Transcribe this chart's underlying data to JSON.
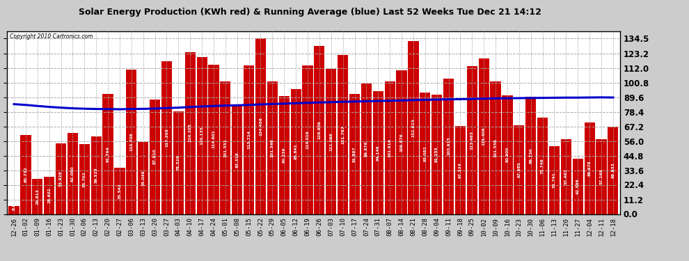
{
  "title": "Solar Energy Production (KWh red) & Running Average (blue) Last 52 Weeks Tue Dec 21 14:12",
  "copyright": "Copyright 2010 Cartronics.com",
  "bar_color": "#cc0000",
  "avg_color": "#0000cc",
  "plot_bg_color": "#ffffff",
  "fig_bg_color": "#cccccc",
  "grid_color": "#aaaaaa",
  "yticks": [
    0.0,
    11.2,
    22.4,
    33.6,
    44.8,
    56.0,
    67.2,
    78.4,
    89.6,
    100.8,
    112.0,
    123.2,
    134.5
  ],
  "ylim": [
    0,
    140
  ],
  "categories": [
    "12-26",
    "01-02",
    "01-09",
    "01-16",
    "01-23",
    "01-30",
    "02-06",
    "02-13",
    "02-20",
    "02-27",
    "03-06",
    "03-13",
    "03-20",
    "03-27",
    "04-03",
    "04-10",
    "04-17",
    "04-24",
    "05-01",
    "05-08",
    "05-15",
    "05-22",
    "05-29",
    "06-05",
    "06-12",
    "06-19",
    "06-26",
    "07-03",
    "07-10",
    "07-17",
    "07-24",
    "07-31",
    "08-07",
    "08-14",
    "08-21",
    "08-28",
    "09-04",
    "09-11",
    "09-18",
    "09-25",
    "10-02",
    "10-09",
    "10-16",
    "10-23",
    "10-30",
    "11-06",
    "11-13",
    "11-20",
    "11-27",
    "12-04",
    "12-11",
    "12-18"
  ],
  "values": [
    6.079,
    60.732,
    26.813,
    28.602,
    53.926,
    62.08,
    53.702,
    59.523,
    91.764,
    35.542,
    110.706,
    55.049,
    87.91,
    117.203,
    78.526,
    124.205,
    120.135,
    114.601,
    101.551,
    83.318,
    113.714,
    134.456,
    101.346,
    90.239,
    95.841,
    114.019,
    128.906,
    111.096,
    121.767,
    91.897,
    99.876,
    94.146,
    101.614,
    109.876,
    132.615,
    93.082,
    91.255,
    103.915,
    67.324,
    113.463,
    119.406,
    101.559,
    90.9,
    67.985,
    89.73,
    73.749,
    51.741,
    57.467,
    42.598,
    69.978,
    57.168,
    66.933
  ],
  "running_avg": [
    84.2,
    83.6,
    82.8,
    82.1,
    81.5,
    81.0,
    80.7,
    80.5,
    80.4,
    80.3,
    80.5,
    80.6,
    80.8,
    81.2,
    81.5,
    82.0,
    82.4,
    82.8,
    83.1,
    83.3,
    83.6,
    84.0,
    84.3,
    84.6,
    84.9,
    85.2,
    85.5,
    85.7,
    86.0,
    86.2,
    86.4,
    86.6,
    86.8,
    87.0,
    87.3,
    87.5,
    87.7,
    87.9,
    88.0,
    88.2,
    88.4,
    88.6,
    88.7,
    88.8,
    88.9,
    89.0,
    89.1,
    89.2,
    89.2,
    89.3,
    89.4,
    89.3
  ]
}
